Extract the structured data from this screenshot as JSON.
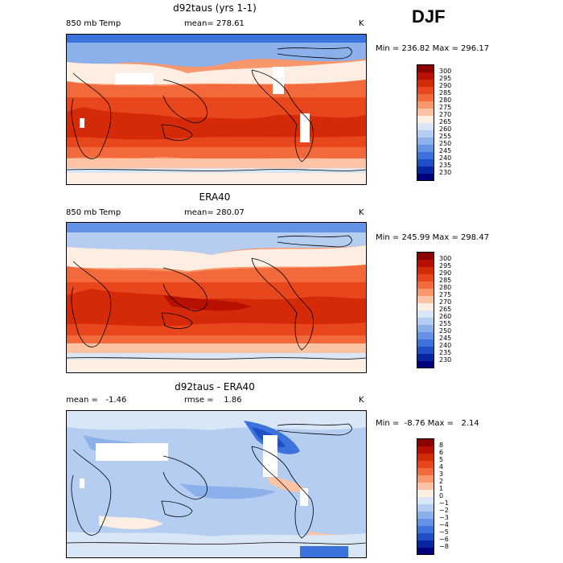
{
  "season": "DJF",
  "units": "K",
  "panels": [
    {
      "title": "d92taus (yrs 1-1)",
      "left_label": "850 mb Temp",
      "center_label": "mean= 278.61",
      "minmax": "Min = 236.82 Max = 296.17",
      "colorbar_labels": [
        "300",
        "295",
        "290",
        "285",
        "280",
        "275",
        "270",
        "265",
        "260",
        "255",
        "250",
        "245",
        "240",
        "235",
        "230"
      ]
    },
    {
      "title": "ERA40",
      "left_label": "850 mb Temp",
      "center_label": "mean= 280.07",
      "minmax": "Min = 245.99 Max = 298.47",
      "colorbar_labels": [
        "300",
        "295",
        "290",
        "285",
        "280",
        "275",
        "270",
        "265",
        "260",
        "255",
        "250",
        "245",
        "240",
        "235",
        "230"
      ]
    },
    {
      "title": "d92taus - ERA40",
      "left_label": "mean =   -1.46",
      "center_label": "rmse =    1.86",
      "minmax": "Min =  -8.76 Max =   2.14",
      "colorbar_labels": [
        "8",
        "6",
        "5",
        "4",
        "3",
        "2",
        "1",
        "0",
        "−1",
        "−2",
        "−3",
        "−4",
        "−5",
        "−6",
        "−8"
      ]
    }
  ],
  "colors": {
    "temp_scale": [
      "#8b0000",
      "#b81000",
      "#d42a0a",
      "#e8461c",
      "#f26a3c",
      "#f8966c",
      "#fcc4a4",
      "#fdeee4",
      "#d8e6f6",
      "#b4cdf0",
      "#8cb0ea",
      "#6492e4",
      "#3c72dc",
      "#1f4fc8",
      "#0a25a0",
      "#00007a"
    ],
    "diff_scale": [
      "#8b0000",
      "#b81000",
      "#d42a0a",
      "#e8461c",
      "#f26a3c",
      "#f8966c",
      "#fcc4a4",
      "#fdeee4",
      "#d8e6f6",
      "#b4cdf0",
      "#8cb0ea",
      "#6492e4",
      "#3c72dc",
      "#1f4fc8",
      "#0a25a0",
      "#00007a"
    ]
  }
}
